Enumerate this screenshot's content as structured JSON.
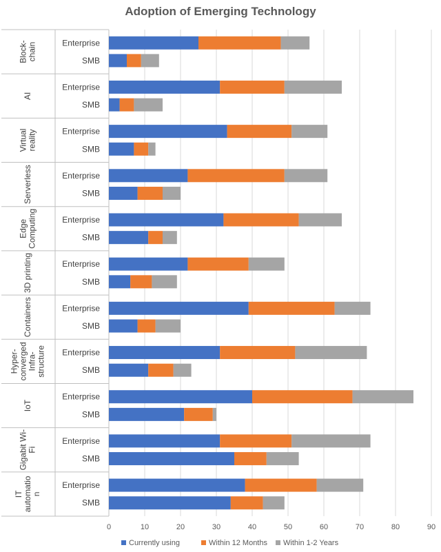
{
  "chart_data": {
    "type": "bar",
    "orientation": "horizontal",
    "stacked": true,
    "title": "Adoption of Emerging Technology",
    "xlim": [
      0,
      90
    ],
    "x_ticks": [
      0,
      10,
      20,
      30,
      40,
      50,
      60,
      70,
      80,
      90
    ],
    "grid": true,
    "legend_position": "bottom",
    "series": [
      {
        "name": "Currently using",
        "color": "#4472C4"
      },
      {
        "name": "Within 12 Months",
        "color": "#ED7D31"
      },
      {
        "name": "Within 1-2 Years",
        "color": "#A5A5A5"
      }
    ],
    "groups": [
      {
        "label_lines": [
          "Block-",
          "chain"
        ],
        "bars": [
          {
            "segment": "Enterprise",
            "values": [
              25,
              23,
              8
            ]
          },
          {
            "segment": "SMB",
            "values": [
              5,
              4,
              5
            ]
          }
        ]
      },
      {
        "label_lines": [
          "AI"
        ],
        "bars": [
          {
            "segment": "Enterprise",
            "values": [
              31,
              18,
              16
            ]
          },
          {
            "segment": "SMB",
            "values": [
              3,
              4,
              8
            ]
          }
        ]
      },
      {
        "label_lines": [
          "Virtual",
          "reality"
        ],
        "bars": [
          {
            "segment": "Enterprise",
            "values": [
              33,
              18,
              10
            ]
          },
          {
            "segment": "SMB",
            "values": [
              7,
              4,
              2
            ]
          }
        ]
      },
      {
        "label_lines": [
          "Serverless"
        ],
        "bars": [
          {
            "segment": "Enterprise",
            "values": [
              22,
              27,
              12
            ]
          },
          {
            "segment": "SMB",
            "values": [
              8,
              7,
              5
            ]
          }
        ]
      },
      {
        "label_lines": [
          "Edge",
          "Computing"
        ],
        "bars": [
          {
            "segment": "Enterprise",
            "values": [
              32,
              21,
              12
            ]
          },
          {
            "segment": "SMB",
            "values": [
              11,
              4,
              4
            ]
          }
        ]
      },
      {
        "label_lines": [
          "3D printing"
        ],
        "bars": [
          {
            "segment": "Enterprise",
            "values": [
              22,
              17,
              10
            ]
          },
          {
            "segment": "SMB",
            "values": [
              6,
              6,
              7
            ]
          }
        ]
      },
      {
        "label_lines": [
          "Containers"
        ],
        "bars": [
          {
            "segment": "Enterprise",
            "values": [
              39,
              24,
              10
            ]
          },
          {
            "segment": "SMB",
            "values": [
              8,
              5,
              7
            ]
          }
        ]
      },
      {
        "label_lines": [
          "Hyper-",
          "converged",
          "Infra-",
          "structure"
        ],
        "bars": [
          {
            "segment": "Enterprise",
            "values": [
              31,
              21,
              20
            ]
          },
          {
            "segment": "SMB",
            "values": [
              11,
              7,
              5
            ]
          }
        ]
      },
      {
        "label_lines": [
          "IoT"
        ],
        "bars": [
          {
            "segment": "Enterprise",
            "values": [
              40,
              28,
              17
            ]
          },
          {
            "segment": "SMB",
            "values": [
              21,
              8,
              1
            ]
          }
        ]
      },
      {
        "label_lines": [
          "Gigabit Wi-",
          "Fi"
        ],
        "bars": [
          {
            "segment": "Enterprise",
            "values": [
              31,
              20,
              22
            ]
          },
          {
            "segment": "SMB",
            "values": [
              35,
              9,
              9
            ]
          }
        ]
      },
      {
        "label_lines": [
          "IT",
          "automatio",
          "n"
        ],
        "bars": [
          {
            "segment": "Enterprise",
            "values": [
              38,
              20,
              13
            ]
          },
          {
            "segment": "SMB",
            "values": [
              34,
              9,
              6
            ]
          }
        ]
      }
    ]
  }
}
